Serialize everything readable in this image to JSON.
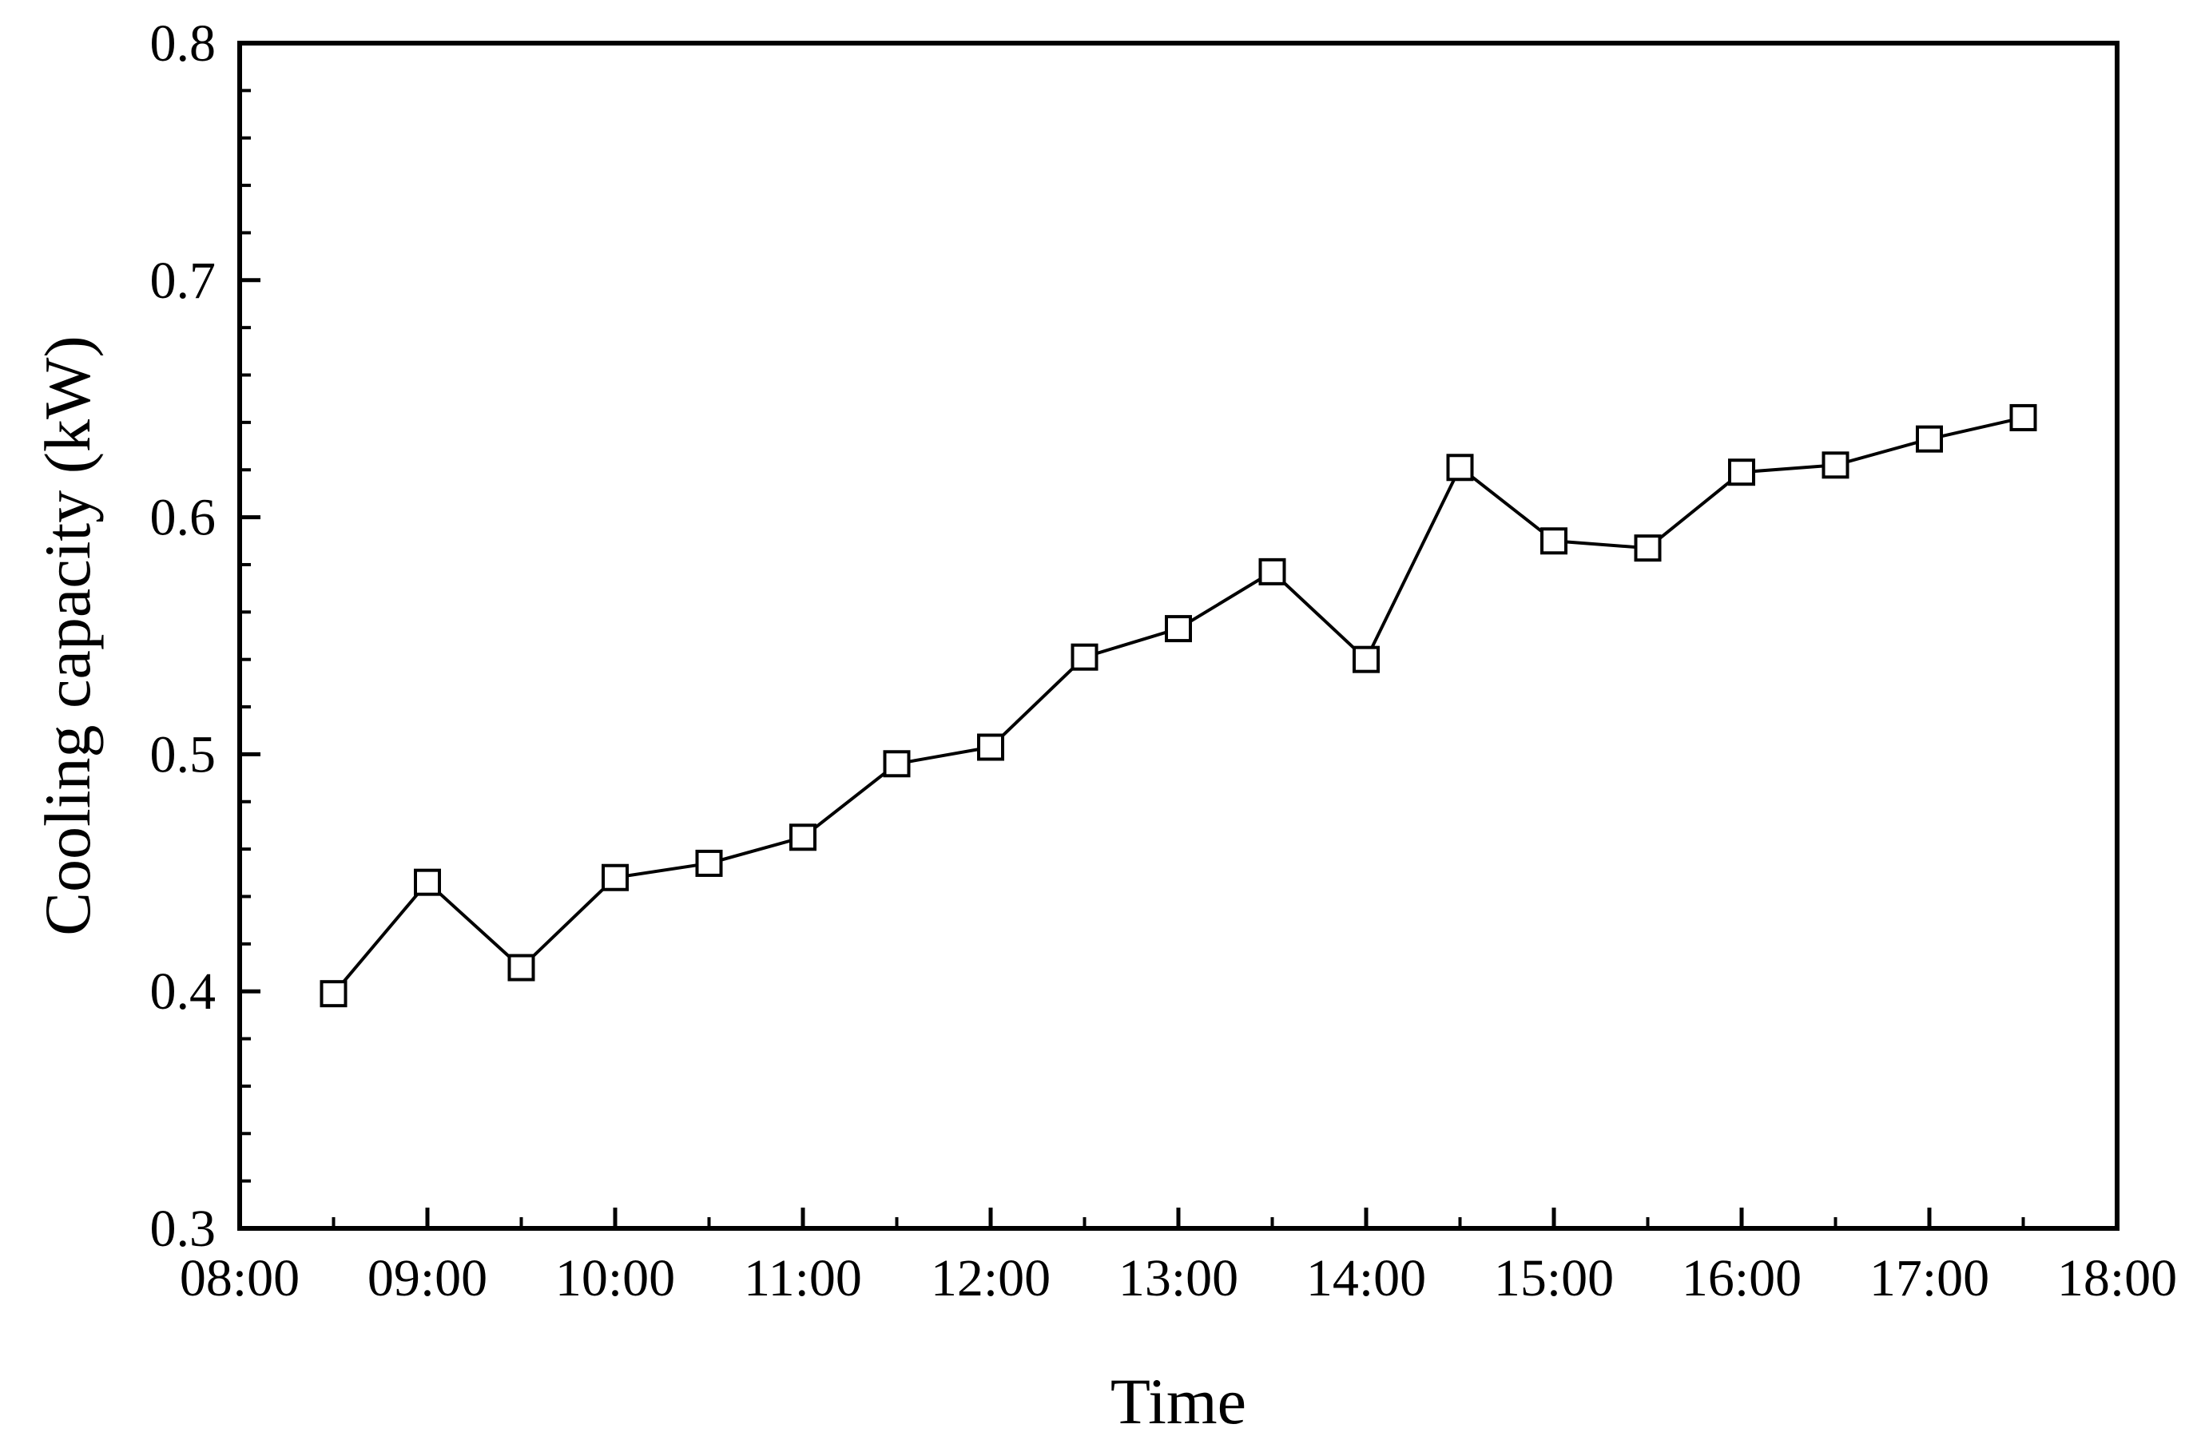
{
  "chart_data": {
    "type": "line",
    "title": "",
    "xlabel": "Time",
    "ylabel": "Cooling capacity (kW)",
    "xlim": [
      "08:00",
      "18:00"
    ],
    "ylim": [
      0.3,
      0.8
    ],
    "x_ticks": [
      "08:00",
      "09:00",
      "10:00",
      "11:00",
      "12:00",
      "13:00",
      "14:00",
      "15:00",
      "16:00",
      "17:00",
      "18:00"
    ],
    "y_ticks": [
      "0.3",
      "0.4",
      "0.5",
      "0.6",
      "0.7",
      "0.8"
    ],
    "grid": false,
    "legend": "none",
    "marker": "open-square",
    "line_color": "#000000",
    "series": [
      {
        "x": [
          "08:30",
          "09:00",
          "09:30",
          "10:00",
          "10:30",
          "11:00",
          "11:30",
          "12:00",
          "12:30",
          "13:00",
          "13:30",
          "14:00",
          "14:30",
          "15:00",
          "15:30",
          "16:00",
          "16:30",
          "17:00",
          "17:30"
        ],
        "values": [
          0.399,
          0.446,
          0.41,
          0.448,
          0.454,
          0.465,
          0.496,
          0.503,
          0.541,
          0.553,
          0.577,
          0.54,
          0.621,
          0.59,
          0.587,
          0.619,
          0.622,
          0.633,
          0.642
        ]
      }
    ]
  }
}
